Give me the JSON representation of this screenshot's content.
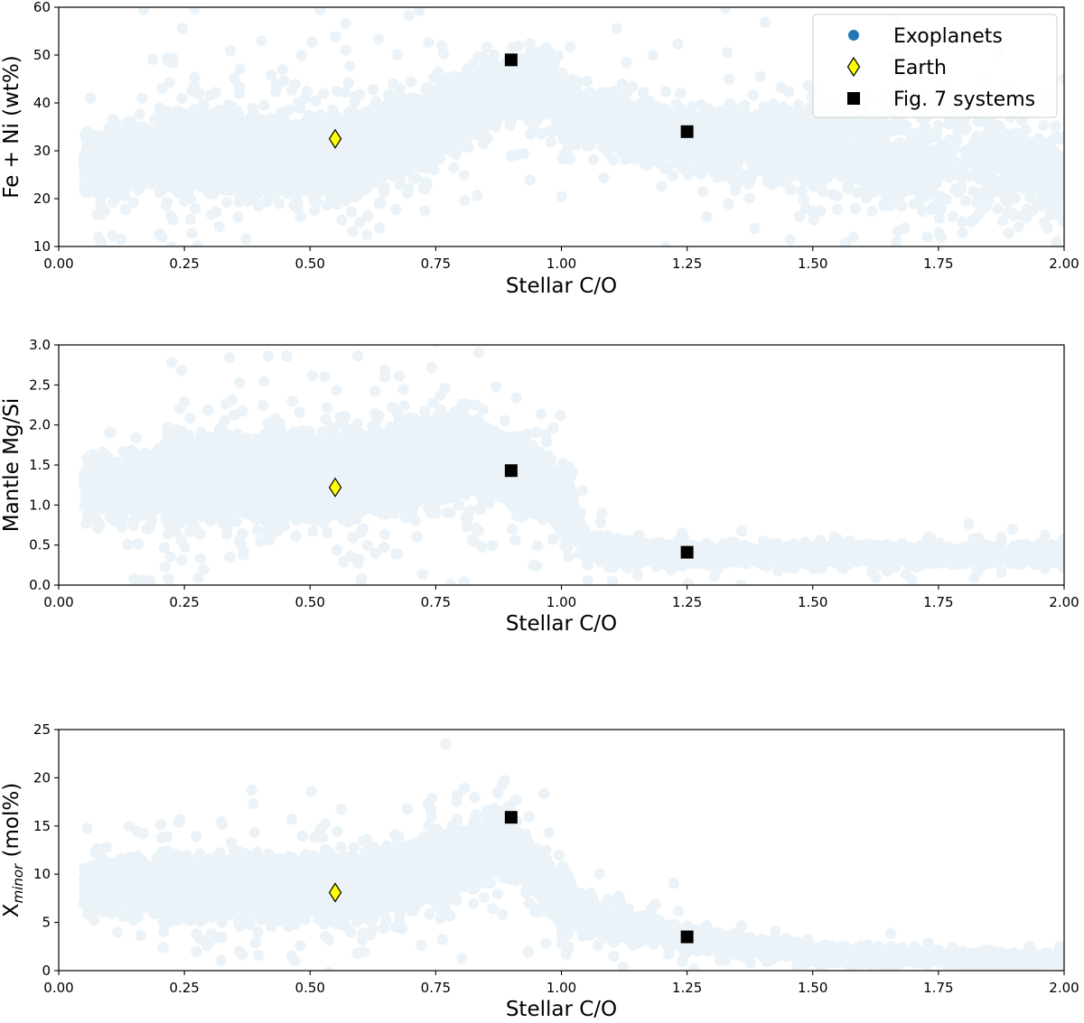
{
  "chart_data": [
    {
      "type": "scatter",
      "xlabel": "Stellar C/O",
      "ylabel": "Fe + Ni (wt%)",
      "xlim": [
        0.0,
        2.0
      ],
      "ylim": [
        10,
        60
      ],
      "xticks": [
        "0.00",
        "0.25",
        "0.50",
        "0.75",
        "1.00",
        "1.25",
        "1.50",
        "1.75",
        "2.00"
      ],
      "yticks": [
        "10",
        "20",
        "30",
        "40",
        "50",
        "60"
      ],
      "series": [
        {
          "name": "Exoplanets",
          "color": "#1f77b4",
          "trend": [
            [
              0.08,
              27
            ],
            [
              0.2,
              30
            ],
            [
              0.35,
              29
            ],
            [
              0.5,
              29
            ],
            [
              0.65,
              31
            ],
            [
              0.8,
              38
            ],
            [
              0.9,
              43
            ],
            [
              0.97,
              45
            ],
            [
              1.02,
              37
            ],
            [
              1.1,
              36
            ],
            [
              1.25,
              33
            ],
            [
              1.5,
              31
            ],
            [
              1.75,
              27
            ],
            [
              2.0,
              25
            ]
          ],
          "spread": [
            [
              0.08,
              6
            ],
            [
              0.3,
              6
            ],
            [
              0.6,
              6
            ],
            [
              0.85,
              4.5
            ],
            [
              0.97,
              4.5
            ],
            [
              1.05,
              4
            ],
            [
              1.25,
              6
            ],
            [
              1.6,
              9
            ],
            [
              2.0,
              10
            ]
          ],
          "count": 12000
        },
        {
          "name": "Earth",
          "color": "#ffff00",
          "points": [
            [
              0.55,
              32.5
            ]
          ]
        },
        {
          "name": "Fig. 7 systems",
          "color": "#000000",
          "points": [
            [
              0.9,
              49
            ],
            [
              1.25,
              34
            ]
          ]
        }
      ],
      "legend": {
        "position": "top-right",
        "entries": [
          "Exoplanets",
          "Earth",
          "Fig. 7 systems"
        ]
      }
    },
    {
      "type": "scatter",
      "xlabel": "Stellar C/O",
      "ylabel": "Mantle Mg/Si",
      "xlim": [
        0.0,
        2.0
      ],
      "ylim": [
        0.0,
        3.0
      ],
      "xticks": [
        "0.00",
        "0.25",
        "0.50",
        "0.75",
        "1.00",
        "1.25",
        "1.50",
        "1.75",
        "2.00"
      ],
      "yticks": [
        "0.0",
        "0.5",
        "1.0",
        "1.5",
        "2.0",
        "2.5",
        "3.0"
      ],
      "series": [
        {
          "name": "Exoplanets",
          "color": "#1f77b4",
          "trend": [
            [
              0.1,
              1.2
            ],
            [
              0.25,
              1.3
            ],
            [
              0.5,
              1.35
            ],
            [
              0.7,
              1.45
            ],
            [
              0.8,
              1.6
            ],
            [
              0.9,
              1.45
            ],
            [
              1.0,
              1.15
            ],
            [
              1.02,
              0.95
            ],
            [
              1.05,
              0.45
            ],
            [
              1.25,
              0.38
            ],
            [
              1.5,
              0.38
            ],
            [
              2.0,
              0.38
            ]
          ],
          "spread": [
            [
              0.1,
              0.35
            ],
            [
              0.4,
              0.4
            ],
            [
              0.75,
              0.4
            ],
            [
              0.95,
              0.3
            ],
            [
              1.02,
              0.2
            ],
            [
              1.05,
              0.12
            ],
            [
              1.4,
              0.1
            ],
            [
              2.0,
              0.12
            ]
          ],
          "count": 12000
        },
        {
          "name": "Earth",
          "color": "#ffff00",
          "points": [
            [
              0.55,
              1.22
            ]
          ]
        },
        {
          "name": "Fig. 7 systems",
          "color": "#000000",
          "points": [
            [
              0.9,
              1.43
            ],
            [
              1.25,
              0.41
            ]
          ]
        }
      ]
    },
    {
      "type": "scatter",
      "xlabel": "Stellar C/O",
      "ylabel": "X",
      "ylabel_sub": "minor",
      "ylabel_unit": "(mol%)",
      "xlim": [
        0.0,
        2.0
      ],
      "ylim": [
        0,
        25
      ],
      "xticks": [
        "0.00",
        "0.25",
        "0.50",
        "0.75",
        "1.00",
        "1.25",
        "1.50",
        "1.75",
        "2.00"
      ],
      "yticks": [
        "0",
        "5",
        "10",
        "15",
        "20",
        "25"
      ],
      "series": [
        {
          "name": "Exoplanets",
          "color": "#1f77b4",
          "trend": [
            [
              0.1,
              8.5
            ],
            [
              0.3,
              8.5
            ],
            [
              0.6,
              8.8
            ],
            [
              0.8,
              11
            ],
            [
              0.88,
              13.5
            ],
            [
              0.92,
              12
            ],
            [
              1.0,
              7
            ],
            [
              1.1,
              5
            ],
            [
              1.25,
              3.3
            ],
            [
              1.5,
              1.8
            ],
            [
              1.75,
              1.3
            ],
            [
              2.0,
              1.0
            ]
          ],
          "spread": [
            [
              0.1,
              2.2
            ],
            [
              0.5,
              2.3
            ],
            [
              0.85,
              2.5
            ],
            [
              0.95,
              1.8
            ],
            [
              1.1,
              1.1
            ],
            [
              1.4,
              0.8
            ],
            [
              2.0,
              0.6
            ]
          ],
          "count": 12000
        },
        {
          "name": "Earth",
          "color": "#ffff00",
          "points": [
            [
              0.55,
              8.1
            ]
          ]
        },
        {
          "name": "Fig. 7 systems",
          "color": "#000000",
          "points": [
            [
              0.9,
              15.9
            ],
            [
              1.25,
              3.5
            ]
          ]
        }
      ]
    }
  ]
}
